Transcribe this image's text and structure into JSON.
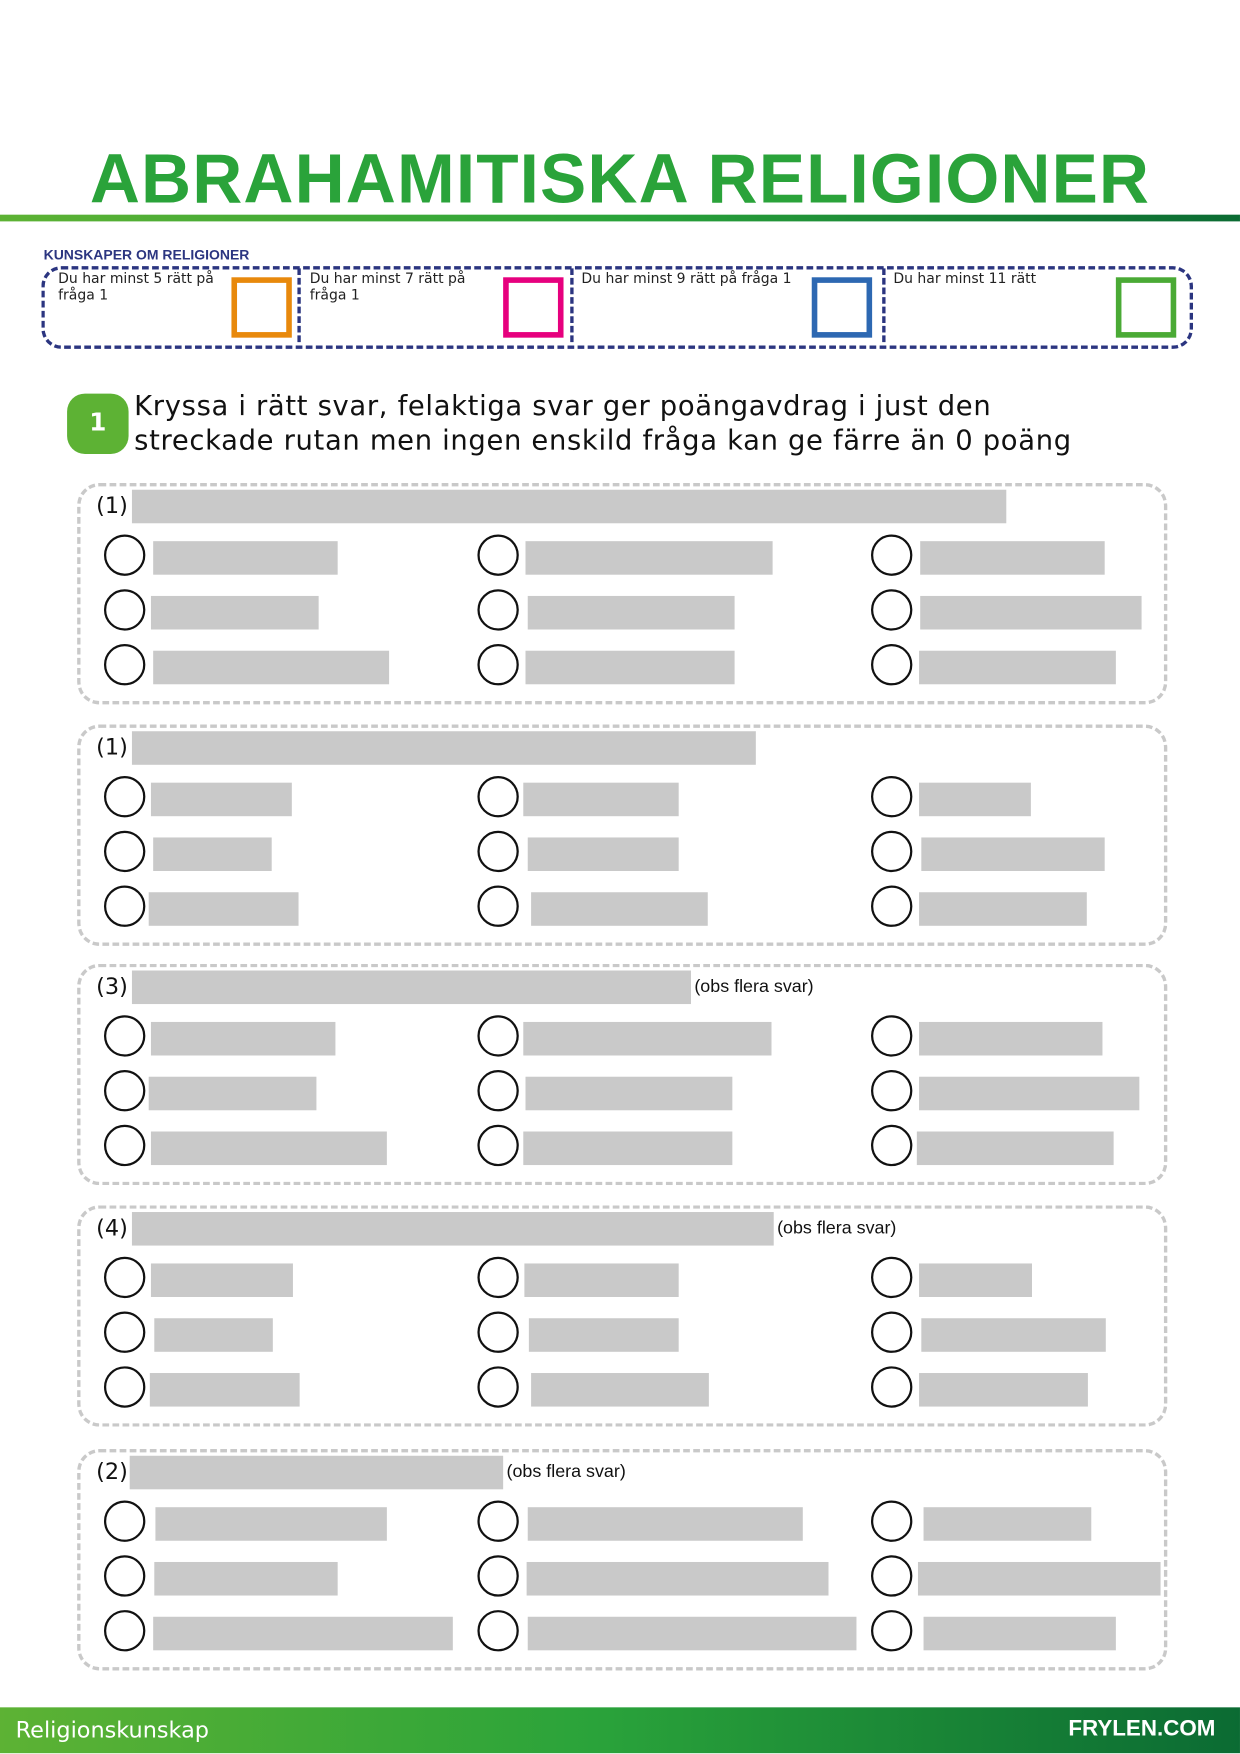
{
  "header": {
    "title": "ABRAHAMITISKA RELIGIONER"
  },
  "grading": {
    "label": "KUNSKAPER OM RELIGIONER",
    "levels": [
      {
        "text": "Du har minst 5 rätt på fråga 1",
        "color": "#e8890c"
      },
      {
        "text": "Du har minst 7 rätt på fråga 1",
        "color": "#e6007e"
      },
      {
        "text": "Du har minst 9 rätt på fråga 1",
        "color": "#2d68b2"
      },
      {
        "text": "Du har minst 11 rätt",
        "color": "#4aaa35"
      }
    ]
  },
  "question": {
    "number": "1",
    "instruction": "Kryssa i rätt svar, felaktiga svar ger poängavdrag i just den streckade rutan men ingen enskild fråga kan ge färre än 0 poäng"
  },
  "sections": [
    {
      "number": "(1)",
      "note": ""
    },
    {
      "number": "(1)",
      "note": ""
    },
    {
      "number": "(3)",
      "note": "(obs flera svar)"
    },
    {
      "number": "(4)",
      "note": "(obs flera svar)"
    },
    {
      "number": "(2)",
      "note": "(obs flera svar)"
    }
  ],
  "footer": {
    "subject": "Religionskunskap",
    "brand": "FRYLEN.COM"
  }
}
